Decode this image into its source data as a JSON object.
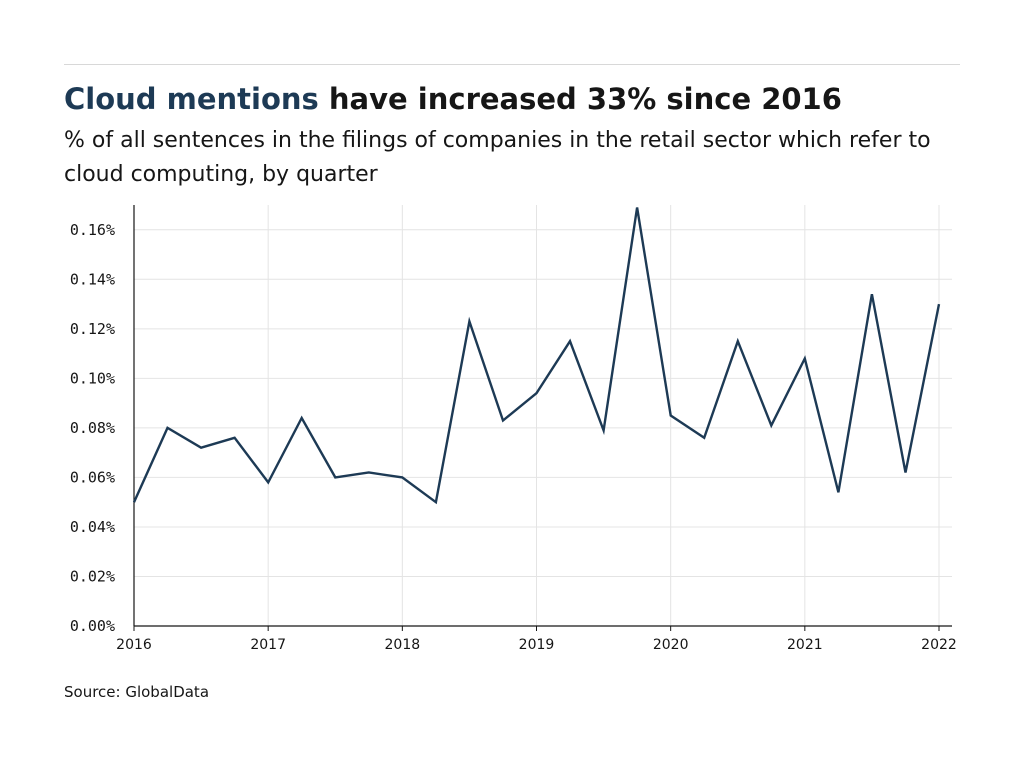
{
  "header": {
    "title_highlight": "Cloud mentions",
    "title_rest": " have increased 33% since 2016",
    "subtitle": "% of all sentences in the filings of companies in the retail sector which refer to cloud computing, by quarter"
  },
  "footer": {
    "source": "Source: GlobalData"
  },
  "colors": {
    "line": "#1d3a55",
    "highlight": "#1d3a55",
    "grid": "#e4e4e4",
    "axis": "#161616"
  },
  "chart_data": {
    "type": "line",
    "title": "Cloud mentions have increased 33% since 2016",
    "subtitle": "% of all sentences in the filings of companies in the retail sector which refer to cloud computing, by quarter",
    "xlabel": "",
    "ylabel": "",
    "xlim": [
      2016,
      2022
    ],
    "ylim": [
      0,
      0.17
    ],
    "x_ticks": [
      2016,
      2017,
      2018,
      2019,
      2020,
      2021,
      2022
    ],
    "y_ticks": [
      0,
      0.02,
      0.04,
      0.06,
      0.08,
      0.1,
      0.12,
      0.14,
      0.16
    ],
    "y_tick_labels": [
      "0.00%",
      "0.02%",
      "0.04%",
      "0.06%",
      "0.08%",
      "0.10%",
      "0.12%",
      "0.14%",
      "0.16%"
    ],
    "grid": true,
    "series": [
      {
        "x": [
          2016.0,
          2016.25,
          2016.5,
          2016.75,
          2017.0,
          2017.25,
          2017.5,
          2017.75,
          2018.0,
          2018.25,
          2018.5,
          2018.75,
          2019.0,
          2019.25,
          2019.5,
          2019.75,
          2020.0,
          2020.25,
          2020.5,
          2020.75,
          2021.0,
          2021.25,
          2021.5,
          2021.75,
          2022.0
        ],
        "values": [
          0.05,
          0.08,
          0.072,
          0.076,
          0.058,
          0.084,
          0.06,
          0.062,
          0.06,
          0.05,
          0.123,
          0.083,
          0.094,
          0.115,
          0.079,
          0.169,
          0.085,
          0.076,
          0.115,
          0.081,
          0.108,
          0.054,
          0.134,
          0.062,
          0.13
        ]
      }
    ]
  }
}
